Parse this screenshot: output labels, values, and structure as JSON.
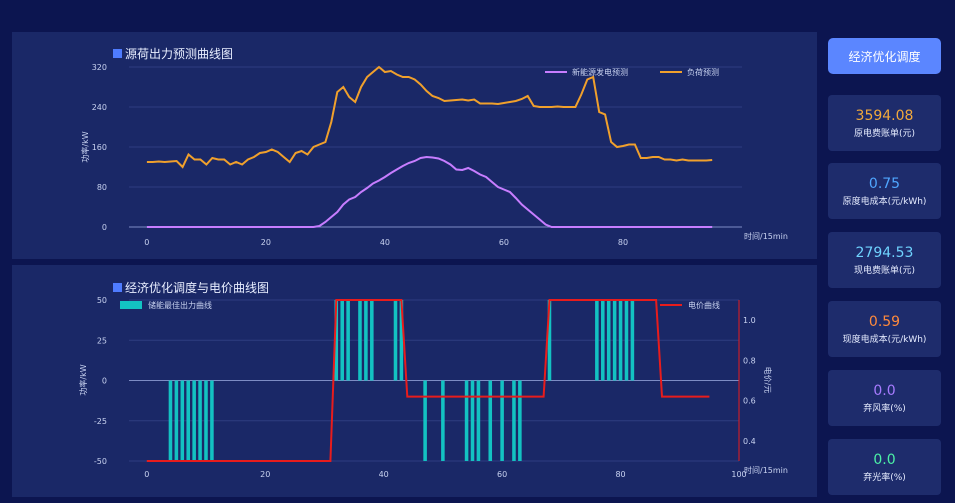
{
  "button": {
    "label": "经济优化调度"
  },
  "cards": [
    {
      "value": "3594.08",
      "label": "原电费账单(元)",
      "color": "#f2a93b"
    },
    {
      "value": "0.75",
      "label": "原度电成本(元/kWh)",
      "color": "#4fa6ff"
    },
    {
      "value": "2794.53",
      "label": "现电费账单(元)",
      "color": "#6fd3ff"
    },
    {
      "value": "0.59",
      "label": "现度电成本(元/kWh)",
      "color": "#ff8a3c"
    },
    {
      "value": "0.0",
      "label": "弃风率(%)",
      "color": "#a77bff"
    },
    {
      "value": "0.0",
      "label": "弃光率(%)",
      "color": "#4cf0a6"
    }
  ],
  "chart_data": [
    {
      "type": "line",
      "title": "源荷出力预测曲线图",
      "xlabel": "时间/15min",
      "ylabel": "功率/kW",
      "xlim": [
        -3,
        100
      ],
      "ylim": [
        0,
        320
      ],
      "xticks": [
        0,
        20,
        40,
        60,
        80
      ],
      "yticks": [
        0,
        80,
        160,
        240,
        320
      ],
      "legend": "top-right",
      "series": [
        {
          "name": "新能源发电预测",
          "color": "#c77dff",
          "values": [
            0,
            0,
            0,
            0,
            0,
            0,
            0,
            0,
            0,
            0,
            0,
            0,
            0,
            0,
            0,
            0,
            0,
            0,
            0,
            0,
            0,
            0,
            0,
            0,
            0,
            0,
            0,
            0,
            0,
            2,
            10,
            20,
            30,
            45,
            55,
            60,
            70,
            78,
            87,
            93,
            100,
            108,
            115,
            122,
            128,
            132,
            138,
            140,
            139,
            137,
            132,
            125,
            115,
            114,
            118,
            112,
            105,
            100,
            90,
            80,
            75,
            70,
            58,
            45,
            35,
            25,
            15,
            5,
            0,
            0,
            0,
            0,
            0,
            0,
            0,
            0,
            0,
            0,
            0,
            0,
            0,
            0,
            0,
            0,
            0,
            0,
            0,
            0,
            0,
            0,
            0,
            0,
            0,
            0,
            0,
            0
          ]
        },
        {
          "name": "负荷预测",
          "color": "#f0a02c",
          "values": [
            130,
            130,
            131,
            130,
            131,
            132,
            120,
            145,
            135,
            135,
            125,
            138,
            135,
            135,
            125,
            130,
            125,
            135,
            140,
            148,
            150,
            155,
            150,
            140,
            130,
            148,
            152,
            145,
            160,
            165,
            170,
            210,
            270,
            280,
            260,
            250,
            280,
            300,
            310,
            320,
            310,
            312,
            305,
            300,
            300,
            295,
            285,
            272,
            262,
            258,
            252,
            253,
            254,
            255,
            253,
            255,
            247,
            247,
            247,
            246,
            248,
            250,
            252,
            256,
            262,
            242,
            240,
            240,
            240,
            241,
            240,
            240,
            240,
            265,
            295,
            300,
            230,
            225,
            170,
            160,
            162,
            165,
            165,
            138,
            138,
            140,
            140,
            135,
            135,
            133,
            135,
            133,
            133,
            133,
            133,
            134
          ]
        }
      ]
    },
    {
      "type": "bar",
      "title": "经济优化调度与电价曲线图",
      "xlabel": "时间/15min",
      "ylabel": "功率/kW",
      "y2label": "电价/元",
      "xlim": [
        -3,
        100
      ],
      "ylim": [
        -50,
        50
      ],
      "y2lim": [
        0.3,
        1.1
      ],
      "xticks": [
        0,
        20,
        40,
        60,
        80,
        100
      ],
      "yticks": [
        -50,
        -25,
        0,
        25,
        50
      ],
      "y2ticks": [
        0.4,
        0.6,
        0.8,
        1.0
      ],
      "legend": "top",
      "series": [
        {
          "name": "储能最佳出力曲线",
          "color": "#13c2c2",
          "x": [
            4,
            5,
            6,
            7,
            8,
            9,
            10,
            11,
            32,
            33,
            34,
            36,
            37,
            38,
            42,
            43,
            47,
            50,
            54,
            55,
            56,
            58,
            60,
            62,
            63,
            68,
            76,
            77,
            78,
            79,
            80,
            81,
            82
          ],
          "values": [
            -50,
            -50,
            -50,
            -50,
            -50,
            -50,
            -50,
            -50,
            50,
            50,
            50,
            50,
            50,
            50,
            50,
            50,
            -50,
            -50,
            -50,
            -50,
            -50,
            -50,
            -50,
            -50,
            -50,
            50,
            50,
            50,
            50,
            50,
            50,
            50,
            50
          ]
        },
        {
          "name": "电价曲线",
          "color": "#e81c1c",
          "axis": "right",
          "x": [
            0,
            31,
            32,
            43,
            44,
            67,
            68,
            86,
            87,
            95
          ],
          "values": [
            0.3,
            0.3,
            1.1,
            1.1,
            0.62,
            0.62,
            1.1,
            1.1,
            0.62,
            0.62
          ]
        }
      ]
    }
  ]
}
